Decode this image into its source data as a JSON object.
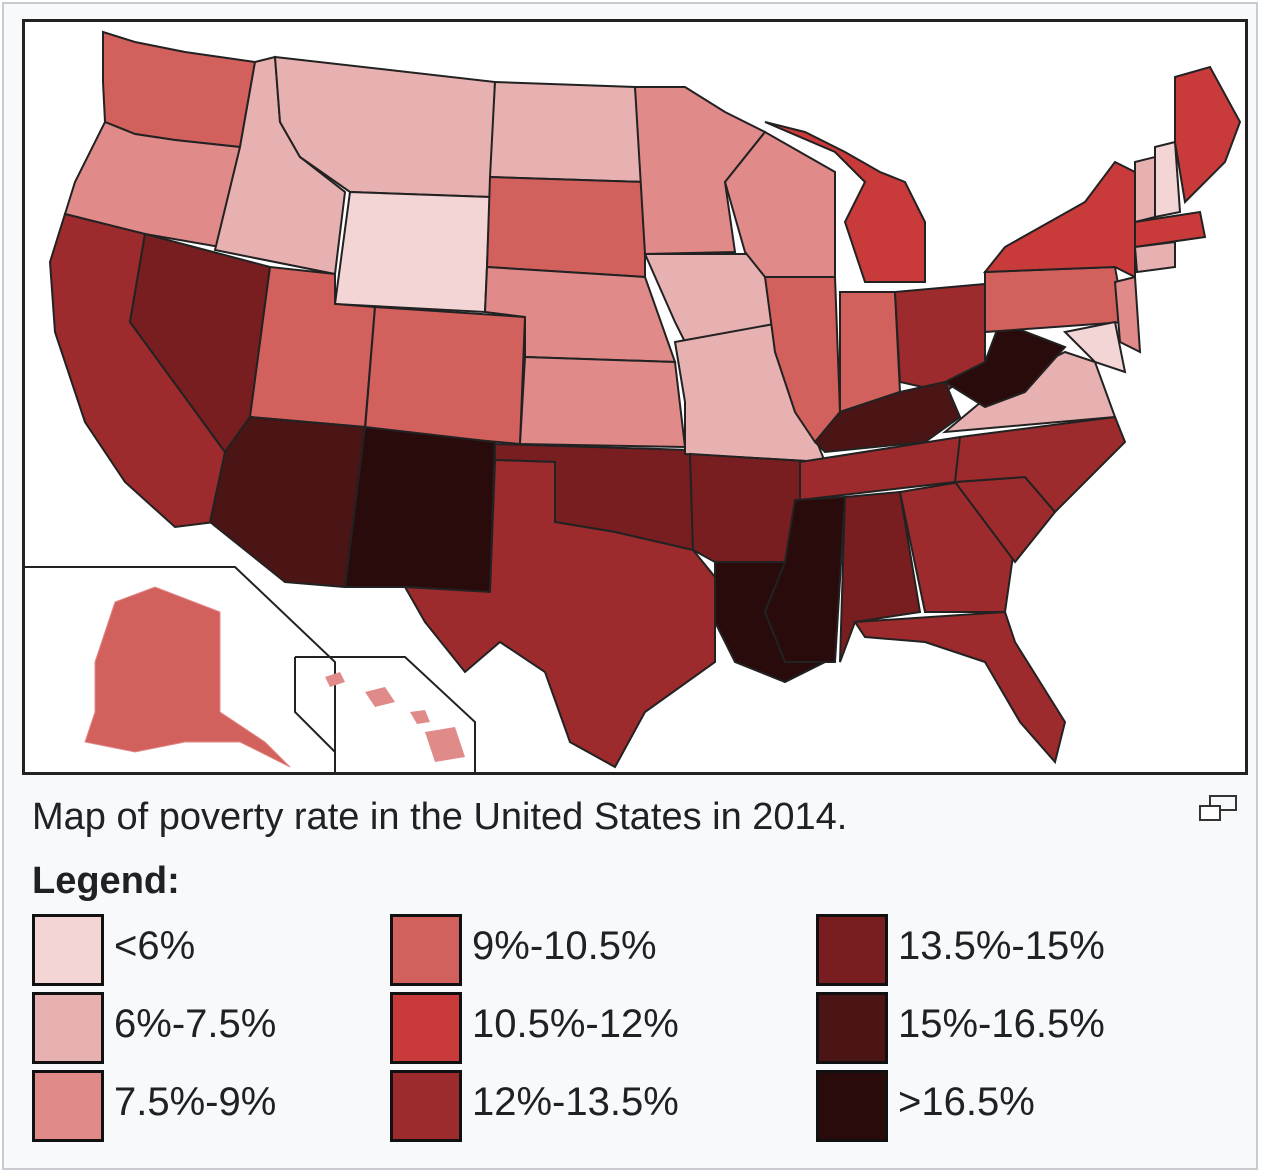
{
  "figure": {
    "caption": "Map of poverty rate in the United States in 2014.",
    "legend_title": "Legend:",
    "enlarge_icon": "magnify-clip-icon"
  },
  "legend": [
    {
      "label": "<6%",
      "color": "#f3d5d6"
    },
    {
      "label": "6%-7.5%",
      "color": "#e8b1b1"
    },
    {
      "label": "7.5%-9%",
      "color": "#e08a89"
    },
    {
      "label": "9%-10.5%",
      "color": "#d2605d"
    },
    {
      "label": "10.5%-12%",
      "color": "#c93a3b"
    },
    {
      "label": "12%-13.5%",
      "color": "#9d2a2c"
    },
    {
      "label": "13.5%-15%",
      "color": "#781e20"
    },
    {
      "label": "15%-16.5%",
      "color": "#4b1415"
    },
    {
      "label": ">16.5%",
      "color": "#2a0b0c"
    }
  ],
  "map": {
    "water_color": "#9cc0e8",
    "border_color": "#222222"
  }
}
